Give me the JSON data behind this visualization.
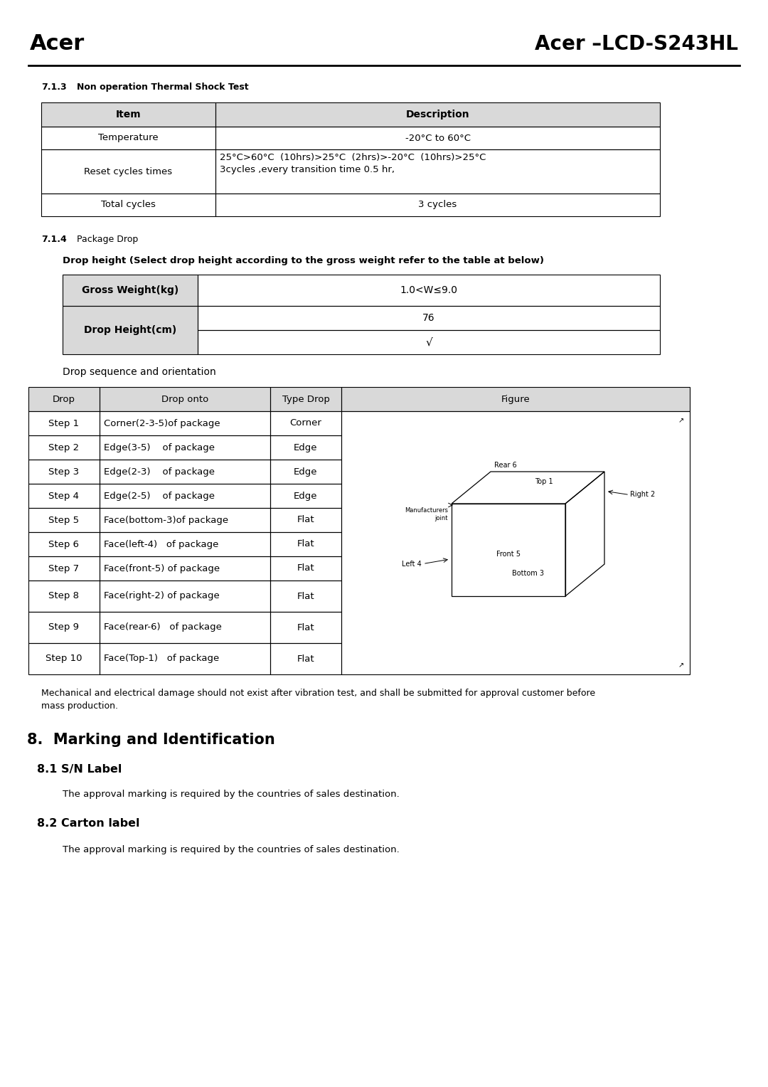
{
  "title_left": "Acer",
  "title_right": "Acer –LCD-S243HL",
  "section_713": "7.1.3",
  "section_713_title": "Non operation Thermal Shock Test",
  "table1_headers": [
    "Item",
    "Description"
  ],
  "table1_rows": [
    [
      "Temperature",
      "-20°C to 60°C"
    ],
    [
      "Reset cycles times",
      "25°C>60°C  (10hrs)>25°C  (2hrs)>-20°C  (10hrs)>25°C\n3cycles ,every transition time 0.5 hr,"
    ],
    [
      "Total cycles",
      "3 cycles"
    ]
  ],
  "section_714": "7.1.4",
  "section_714_title": "Package Drop",
  "drop_height_note": "Drop height (Select drop height according to the gross weight refer to the table at below)",
  "table2_col1": "Gross Weight(kg)",
  "table2_col1_val": "1.0<W≤9.0",
  "table2_col2": "Drop Height(cm)",
  "table2_col2_val1": "76",
  "table2_col2_val2": "√",
  "drop_seq_title": "Drop sequence and orientation",
  "table3_headers": [
    "Drop",
    "Drop onto",
    "Type Drop",
    "Figure"
  ],
  "table3_rows": [
    [
      "Step 1",
      "Corner(2-3-5)of package",
      "Corner"
    ],
    [
      "Step 2",
      "Edge(3-5)    of package",
      "Edge"
    ],
    [
      "Step 3",
      "Edge(2-3)    of package",
      "Edge"
    ],
    [
      "Step 4",
      "Edge(2-5)    of package",
      "Edge"
    ],
    [
      "Step 5",
      "Face(bottom-3)of package",
      "Flat"
    ],
    [
      "Step 6",
      "Face(left-4)   of package",
      "Flat"
    ],
    [
      "Step 7",
      "Face(front-5) of package",
      "Flat"
    ],
    [
      "Step 8",
      "Face(right-2) of package",
      "Flat"
    ],
    [
      "Step 9",
      "Face(rear-6)   of package",
      "Flat"
    ],
    [
      "Step 10",
      "Face(Top-1)   of package",
      "Flat"
    ]
  ],
  "note_text": "    Mechanical and electrical damage should not exist after vibration test, and shall be submitted for approval customer before\nmass production.",
  "section8_title": "8.  Marking and Identification",
  "section81_title": "8.1 S/N Label",
  "section81_text": "The approval marking is required by the countries of sales destination.",
  "section82_title": "8.2 Carton label",
  "section82_text": "The approval marking is required by the countries of sales destination.",
  "bg_color": "#ffffff",
  "header_bg": "#d9d9d9",
  "text_color": "#000000"
}
